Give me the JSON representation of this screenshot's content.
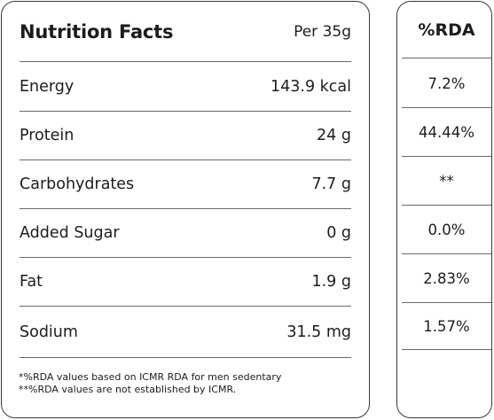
{
  "facts": {
    "title": "Nutrition Facts",
    "per": "Per 35g",
    "rows": [
      {
        "label": "Energy",
        "value": "143.9 kcal"
      },
      {
        "label": "Protein",
        "value": "24 g"
      },
      {
        "label": "Carbohydrates",
        "value": "7.7 g"
      },
      {
        "label": "Added Sugar",
        "value": "0 g"
      },
      {
        "label": "Fat",
        "value": "1.9 g"
      },
      {
        "label": "Sodium",
        "value": "31.5 mg"
      }
    ],
    "footnotes": [
      "*%RDA values based on ICMR RDA for men sedentary",
      "**%RDA values are not established by ICMR."
    ]
  },
  "rda": {
    "title": "%RDA",
    "values": [
      "7.2%",
      "44.44%",
      "**",
      "0.0%",
      "2.83%",
      "1.57%"
    ]
  }
}
